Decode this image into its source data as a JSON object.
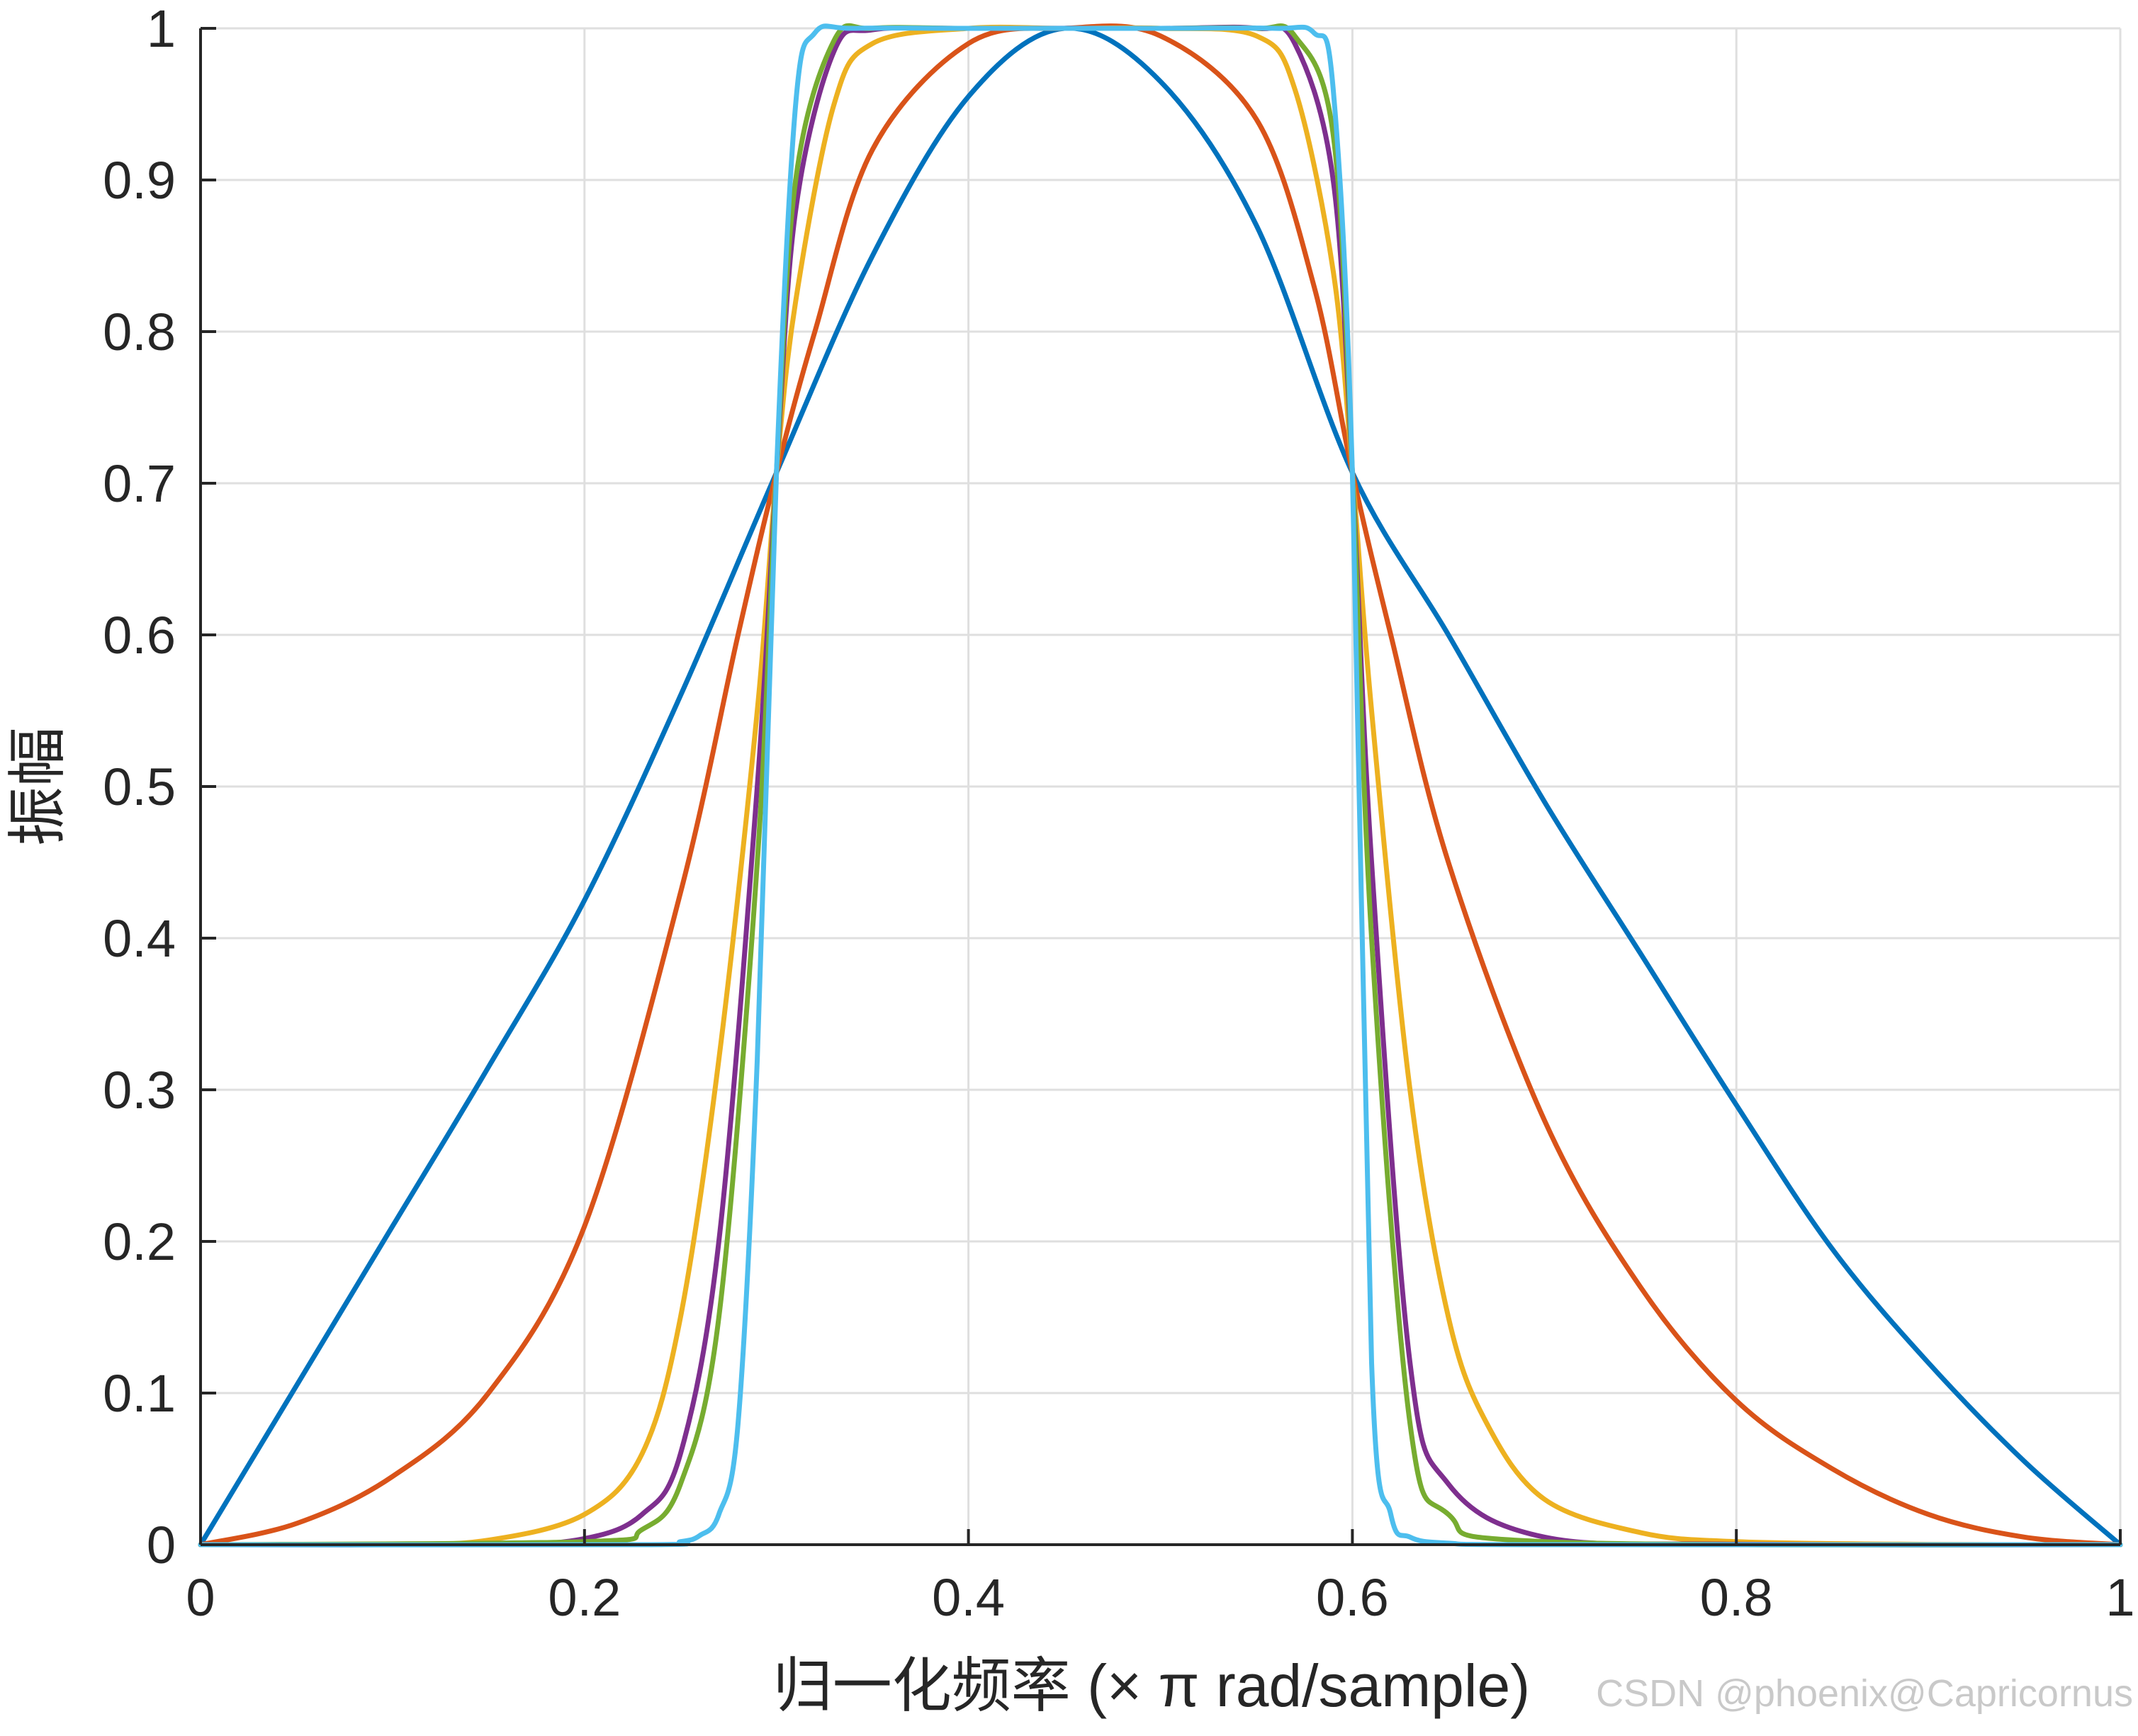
{
  "chart_data": {
    "type": "line",
    "title": "",
    "xlabel": "归一化频率 (× π rad/sample)",
    "ylabel": "振幅",
    "xlim": [
      0,
      1
    ],
    "ylim": [
      0,
      1
    ],
    "xticks": [
      "0",
      "0.2",
      "0.4",
      "0.6",
      "0.8",
      "1"
    ],
    "yticks": [
      "0",
      "0.1",
      "0.2",
      "0.3",
      "0.4",
      "0.5",
      "0.6",
      "0.7",
      "0.8",
      "0.9",
      "1"
    ],
    "xtick_values": [
      0,
      0.2,
      0.4,
      0.6,
      0.8,
      1
    ],
    "ytick_values": [
      0,
      0.1,
      0.2,
      0.3,
      0.4,
      0.5,
      0.6,
      0.7,
      0.8,
      0.9,
      1
    ],
    "grid": true,
    "legend": "none",
    "series": [
      {
        "color": "#0072BD",
        "x": [
          0,
          0.05,
          0.1,
          0.15,
          0.2,
          0.25,
          0.3,
          0.35,
          0.4,
          0.45,
          0.5,
          0.55,
          0.6,
          0.65,
          0.7,
          0.75,
          0.8,
          0.85,
          0.9,
          0.95,
          1
        ],
        "y": [
          0,
          0.105,
          0.21,
          0.315,
          0.425,
          0.56,
          0.707,
          0.85,
          0.955,
          1.0,
          0.965,
          0.87,
          0.707,
          0.6,
          0.49,
          0.39,
          0.29,
          0.195,
          0.12,
          0.055,
          0
        ]
      },
      {
        "color": "#D95319",
        "x": [
          0,
          0.05,
          0.1,
          0.15,
          0.2,
          0.25,
          0.28,
          0.3,
          0.32,
          0.35,
          0.4,
          0.45,
          0.5,
          0.55,
          0.58,
          0.6,
          0.62,
          0.65,
          0.7,
          0.75,
          0.8,
          0.85,
          0.9,
          0.95,
          1
        ],
        "y": [
          0,
          0.014,
          0.045,
          0.1,
          0.21,
          0.43,
          0.6,
          0.707,
          0.8,
          0.92,
          0.99,
          1.0,
          0.995,
          0.94,
          0.83,
          0.707,
          0.6,
          0.45,
          0.28,
          0.17,
          0.095,
          0.05,
          0.02,
          0.005,
          0
        ]
      },
      {
        "color": "#EDB120",
        "x": [
          0,
          0.1,
          0.15,
          0.2,
          0.23,
          0.25,
          0.27,
          0.29,
          0.3,
          0.31,
          0.33,
          0.35,
          0.4,
          0.45,
          0.5,
          0.55,
          0.57,
          0.59,
          0.6,
          0.61,
          0.63,
          0.65,
          0.67,
          0.7,
          0.75,
          0.8,
          0.9,
          1
        ],
        "y": [
          0,
          0.0003,
          0.003,
          0.02,
          0.06,
          0.15,
          0.32,
          0.55,
          0.707,
          0.82,
          0.95,
          0.99,
          1.0,
          1.0,
          1.0,
          0.995,
          0.96,
          0.84,
          0.707,
          0.55,
          0.3,
          0.15,
          0.08,
          0.03,
          0.008,
          0.002,
          0.0002,
          0
        ]
      },
      {
        "color": "#7E2F8E",
        "x": [
          0,
          0.15,
          0.2,
          0.23,
          0.25,
          0.27,
          0.29,
          0.3,
          0.31,
          0.33,
          0.35,
          0.4,
          0.5,
          0.55,
          0.57,
          0.59,
          0.6,
          0.61,
          0.63,
          0.65,
          0.7,
          0.8,
          1
        ],
        "y": [
          0,
          0.0003,
          0.004,
          0.02,
          0.06,
          0.2,
          0.5,
          0.707,
          0.88,
          0.985,
          0.999,
          1.0,
          1.0,
          1.0,
          0.99,
          0.9,
          0.707,
          0.45,
          0.12,
          0.04,
          0.005,
          0.0003,
          0
        ]
      },
      {
        "color": "#77AC30",
        "x": [
          0,
          0.2,
          0.23,
          0.25,
          0.27,
          0.29,
          0.3,
          0.31,
          0.33,
          0.35,
          0.4,
          0.5,
          0.55,
          0.57,
          0.59,
          0.6,
          0.61,
          0.63,
          0.65,
          0.7,
          1
        ],
        "y": [
          0,
          0.002,
          0.01,
          0.04,
          0.15,
          0.45,
          0.707,
          0.9,
          0.992,
          1.0,
          1.0,
          1.0,
          1.0,
          0.995,
          0.93,
          0.707,
          0.4,
          0.08,
          0.02,
          0.002,
          0
        ]
      },
      {
        "color": "#4DBEEE",
        "x": [
          0,
          0.23,
          0.25,
          0.26,
          0.27,
          0.28,
          0.29,
          0.3,
          0.31,
          0.32,
          0.34,
          0.4,
          0.5,
          0.56,
          0.58,
          0.59,
          0.6,
          0.61,
          0.62,
          0.63,
          0.65,
          0.7,
          1
        ],
        "y": [
          0,
          0.0,
          0.002,
          0.006,
          0.02,
          0.08,
          0.32,
          0.707,
          0.95,
          0.997,
          1.0,
          1.0,
          1.0,
          1.0,
          0.997,
          0.96,
          0.707,
          0.12,
          0.02,
          0.005,
          0.001,
          0.0,
          0
        ]
      }
    ]
  },
  "watermark": "CSDN @phoenix@Capricornus"
}
